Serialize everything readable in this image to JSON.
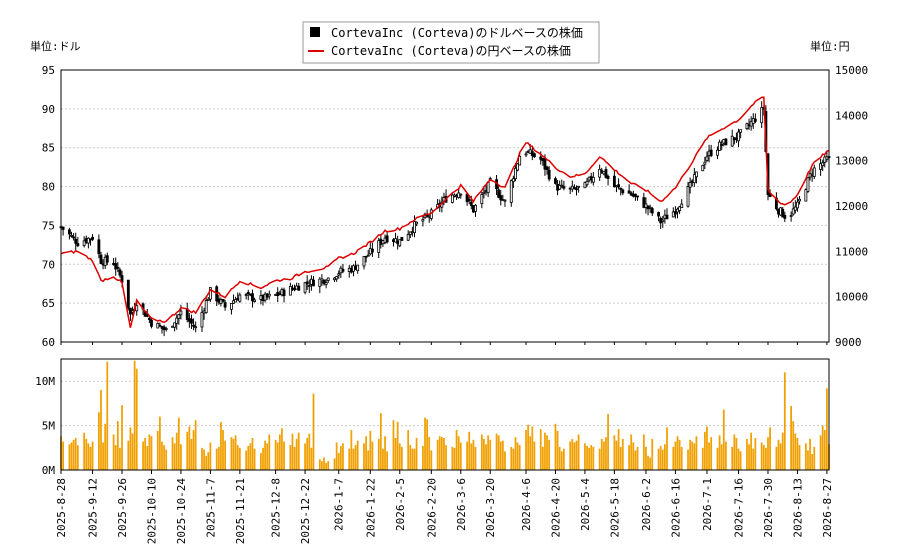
{
  "chart_data": {
    "type": "stock",
    "legend": [
      {
        "name": "CortevaInc (Corteva)のドルベースの株価",
        "color": "#000000",
        "marker": "square"
      },
      {
        "name": "CortevaInc (Corteva)の円ベースの株価",
        "color": "#dd0000",
        "marker": "line"
      }
    ],
    "legend_position": "top-center",
    "left_unit_label": "単位:ドル",
    "right_unit_label": "単位:円",
    "price_axis_left": {
      "min": 60,
      "max": 95,
      "ticks": [
        "60",
        "65",
        "70",
        "75",
        "80",
        "85",
        "90",
        "95"
      ]
    },
    "price_axis_right": {
      "min": 9000,
      "max": 15000,
      "ticks": [
        "9000",
        "10000",
        "11000",
        "12000",
        "13000",
        "14000",
        "15000"
      ]
    },
    "volume_axis": {
      "min": 0,
      "max": 12500000,
      "ticks": [
        {
          "value": 0,
          "label": "0M"
        },
        {
          "value": 5000000,
          "label": "5M"
        },
        {
          "value": 10000000,
          "label": "10M"
        }
      ]
    },
    "x_axis": {
      "start": "2025-08-28",
      "end": "2026-08-28",
      "tick_labels": [
        "2025-8-28",
        "2025-9-12",
        "2025-9-26",
        "2025-10-10",
        "2025-10-24",
        "2025-11-7",
        "2025-11-21",
        "2025-12-8",
        "2025-12-22",
        "2026-1-7",
        "2026-1-22",
        "2026-2-5",
        "2026-2-20",
        "2026-3-6",
        "2026-3-20",
        "2026-4-6",
        "2026-4-20",
        "2026-5-4",
        "2026-5-18",
        "2026-6-2",
        "2026-6-16",
        "2026-7-1",
        "2026-7-16",
        "2026-7-30",
        "2026-8-13",
        "2026-8-27"
      ]
    },
    "usd_close_anchors": [
      [
        "2025-08-28",
        74.8
      ],
      [
        "2025-09-05",
        72.8
      ],
      [
        "2025-09-12",
        73.5
      ],
      [
        "2025-09-16",
        70.5
      ],
      [
        "2025-09-22",
        70.2
      ],
      [
        "2025-09-26",
        68.0
      ],
      [
        "2025-09-30",
        63.5
      ],
      [
        "2025-10-03",
        65.2
      ],
      [
        "2025-10-10",
        62.5
      ],
      [
        "2025-10-17",
        61.5
      ],
      [
        "2025-10-24",
        63.8
      ],
      [
        "2025-10-31",
        61.8
      ],
      [
        "2025-11-07",
        66.5
      ],
      [
        "2025-11-14",
        64.5
      ],
      [
        "2025-11-21",
        66.0
      ],
      [
        "2025-12-01",
        65.5
      ],
      [
        "2025-12-08",
        66.0
      ],
      [
        "2025-12-15",
        66.8
      ],
      [
        "2025-12-22",
        67.5
      ],
      [
        "2026-01-02",
        68.2
      ],
      [
        "2026-01-07",
        69.0
      ],
      [
        "2026-01-14",
        69.5
      ],
      [
        "2026-01-22",
        71.5
      ],
      [
        "2026-01-29",
        73.5
      ],
      [
        "2026-02-05",
        73.0
      ],
      [
        "2026-02-12",
        75.0
      ],
      [
        "2026-02-20",
        76.5
      ],
      [
        "2026-02-27",
        78.5
      ],
      [
        "2026-03-06",
        79.5
      ],
      [
        "2026-03-12",
        77.0
      ],
      [
        "2026-03-20",
        80.5
      ],
      [
        "2026-03-27",
        78.0
      ],
      [
        "2026-04-03",
        84.0
      ],
      [
        "2026-04-06",
        84.5
      ],
      [
        "2026-04-13",
        83.5
      ],
      [
        "2026-04-20",
        80.0
      ],
      [
        "2026-04-27",
        79.5
      ],
      [
        "2026-05-04",
        80.0
      ],
      [
        "2026-05-11",
        82.5
      ],
      [
        "2026-05-18",
        80.0
      ],
      [
        "2026-05-26",
        79.0
      ],
      [
        "2026-06-02",
        77.5
      ],
      [
        "2026-06-09",
        75.5
      ],
      [
        "2026-06-16",
        77.0
      ],
      [
        "2026-06-23",
        80.0
      ],
      [
        "2026-07-01",
        84.0
      ],
      [
        "2026-07-08",
        85.5
      ],
      [
        "2026-07-16",
        86.5
      ],
      [
        "2026-07-23",
        88.5
      ],
      [
        "2026-07-28",
        90.0
      ],
      [
        "2026-07-30",
        79.0
      ],
      [
        "2026-08-04",
        77.0
      ],
      [
        "2026-08-08",
        76.0
      ],
      [
        "2026-08-13",
        77.5
      ],
      [
        "2026-08-20",
        82.0
      ],
      [
        "2026-08-27",
        83.5
      ]
    ],
    "jpy_close_anchors": [
      [
        "2025-08-28",
        10950
      ],
      [
        "2025-09-05",
        11000
      ],
      [
        "2025-09-12",
        10800
      ],
      [
        "2025-09-16",
        10350
      ],
      [
        "2025-09-22",
        10450
      ],
      [
        "2025-09-26",
        10300
      ],
      [
        "2025-09-30",
        9300
      ],
      [
        "2025-10-03",
        9900
      ],
      [
        "2025-10-10",
        9500
      ],
      [
        "2025-10-17",
        9450
      ],
      [
        "2025-10-24",
        9750
      ],
      [
        "2025-10-31",
        9650
      ],
      [
        "2025-11-07",
        10150
      ],
      [
        "2025-11-14",
        10000
      ],
      [
        "2025-11-21",
        10350
      ],
      [
        "2025-12-01",
        10200
      ],
      [
        "2025-12-08",
        10350
      ],
      [
        "2025-12-15",
        10400
      ],
      [
        "2025-12-22",
        10550
      ],
      [
        "2026-01-02",
        10650
      ],
      [
        "2026-01-07",
        10850
      ],
      [
        "2026-01-14",
        10950
      ],
      [
        "2026-01-22",
        11200
      ],
      [
        "2026-01-29",
        11450
      ],
      [
        "2026-02-05",
        11500
      ],
      [
        "2026-02-12",
        11700
      ],
      [
        "2026-02-20",
        11850
      ],
      [
        "2026-02-27",
        12150
      ],
      [
        "2026-03-06",
        12450
      ],
      [
        "2026-03-12",
        12100
      ],
      [
        "2026-03-20",
        12600
      ],
      [
        "2026-03-27",
        12400
      ],
      [
        "2026-04-03",
        13150
      ],
      [
        "2026-04-06",
        13400
      ],
      [
        "2026-04-13",
        13150
      ],
      [
        "2026-04-20",
        12850
      ],
      [
        "2026-04-27",
        12650
      ],
      [
        "2026-05-04",
        12700
      ],
      [
        "2026-05-11",
        13100
      ],
      [
        "2026-05-18",
        12800
      ],
      [
        "2026-05-26",
        12500
      ],
      [
        "2026-06-02",
        12350
      ],
      [
        "2026-06-09",
        12100
      ],
      [
        "2026-06-16",
        12400
      ],
      [
        "2026-06-23",
        12900
      ],
      [
        "2026-07-01",
        13500
      ],
      [
        "2026-07-08",
        13700
      ],
      [
        "2026-07-16",
        13900
      ],
      [
        "2026-07-23",
        14250
      ],
      [
        "2026-07-28",
        14400
      ],
      [
        "2026-07-30",
        12350
      ],
      [
        "2026-08-04",
        12100
      ],
      [
        "2026-08-08",
        12000
      ],
      [
        "2026-08-13",
        12250
      ],
      [
        "2026-08-20",
        12900
      ],
      [
        "2026-08-27",
        13200
      ]
    ],
    "volume_daily_millions": [
      3.8,
      3.2,
      2.9,
      3.1,
      3.4,
      3.6,
      2.8,
      4.2,
      3.5,
      3.0,
      2.6,
      3.2,
      6.5,
      9.0,
      3.1,
      5.2,
      12.2,
      4.0,
      2.8,
      5.5,
      2.5,
      7.3,
      3.3,
      4.8,
      4.1,
      12.3,
      11.4,
      3.2,
      3.6,
      2.7,
      4.0,
      3.8,
      4.4,
      6.0,
      3.2,
      2.8,
      2.3,
      3.7,
      3.0,
      4.2,
      5.9,
      2.9,
      4.3,
      4.9,
      3.5,
      4.5,
      5.6,
      2.5,
      2.3,
      1.6,
      2.0,
      3.1,
      2.4,
      2.6,
      5.4,
      4.5,
      3.3,
      3.7,
      3.5,
      3.9,
      2.8,
      2.5,
      2.2,
      2.7,
      3.0,
      3.6,
      2.4,
      1.9,
      2.5,
      3.3,
      3.0,
      4.0,
      3.4,
      3.1,
      4.0,
      4.7,
      3.2,
      2.8,
      4.1,
      2.6,
      3.5,
      4.2,
      3.0,
      3.6,
      4.1,
      2.5,
      8.6,
      1.2,
      1.0,
      1.4,
      0.8,
      1.0,
      1.3,
      3.1,
      1.9,
      2.7,
      3.0,
      2.4,
      4.5,
      2.4,
      2.8,
      3.3,
      3.0,
      3.8,
      2.2,
      4.4,
      3.2,
      3.5,
      6.4,
      2.4,
      3.8,
      2.1,
      5.6,
      3.6,
      5.4,
      3.0,
      2.6,
      4.5,
      2.8,
      2.4,
      2.4,
      3.6,
      2.7,
      5.9,
      5.7,
      3.7,
      2.2,
      3.4,
      3.8,
      3.7,
      3.6,
      2.8,
      2.6,
      2.5,
      4.5,
      3.8,
      3.1,
      3.2,
      4.3,
      3.0,
      3.4,
      2.6,
      4.0,
      3.5,
      2.9,
      3.9,
      3.4,
      4.1,
      3.9,
      3.2,
      3.3,
      2.1,
      2.6,
      2.4,
      3.7,
      3.1,
      2.8,
      4.5,
      5.1,
      3.8,
      4.9,
      3.2,
      4.6,
      2.6,
      4.2,
      3.9,
      3.4,
      5.2,
      4.4,
      2.6,
      2.1,
      2.4,
      3.2,
      3.5,
      3.1,
      3.3,
      4.0,
      3.0,
      2.7,
      2.5,
      2.8,
      2.6,
      2.4,
      3.5,
      3.2,
      3.7,
      6.3,
      3.9,
      3.3,
      4.6,
      2.6,
      3.5,
      2.8,
      4.0,
      3.1,
      2.2,
      2.6,
      4.0,
      2.6,
      1.6,
      1.4,
      3.5,
      2.4,
      2.7,
      2.3,
      2.9,
      4.8,
      2.6,
      3.2,
      3.8,
      3.4,
      2.6,
      2.3,
      3.4,
      3.2,
      3.0,
      3.8,
      2.5,
      4.3,
      4.9,
      3.1,
      3.7,
      2.5,
      3.9,
      2.9,
      6.8,
      3.2,
      2.6,
      4.0,
      3.6,
      2.4,
      2.1,
      3.5,
      2.9,
      4.2,
      2.4,
      3.6,
      3.1,
      2.8,
      2.5,
      3.7,
      4.8,
      2.6,
      3.4,
      3.0,
      4.2,
      11.0,
      7.2,
      5.5,
      4.1,
      3.6,
      2.8,
      3.0,
      2.2,
      3.5,
      1.8,
      2.6,
      3.9,
      5.0,
      4.5,
      9.2,
      2.9,
      3.4,
      4.1,
      3.2,
      3.0
    ]
  }
}
